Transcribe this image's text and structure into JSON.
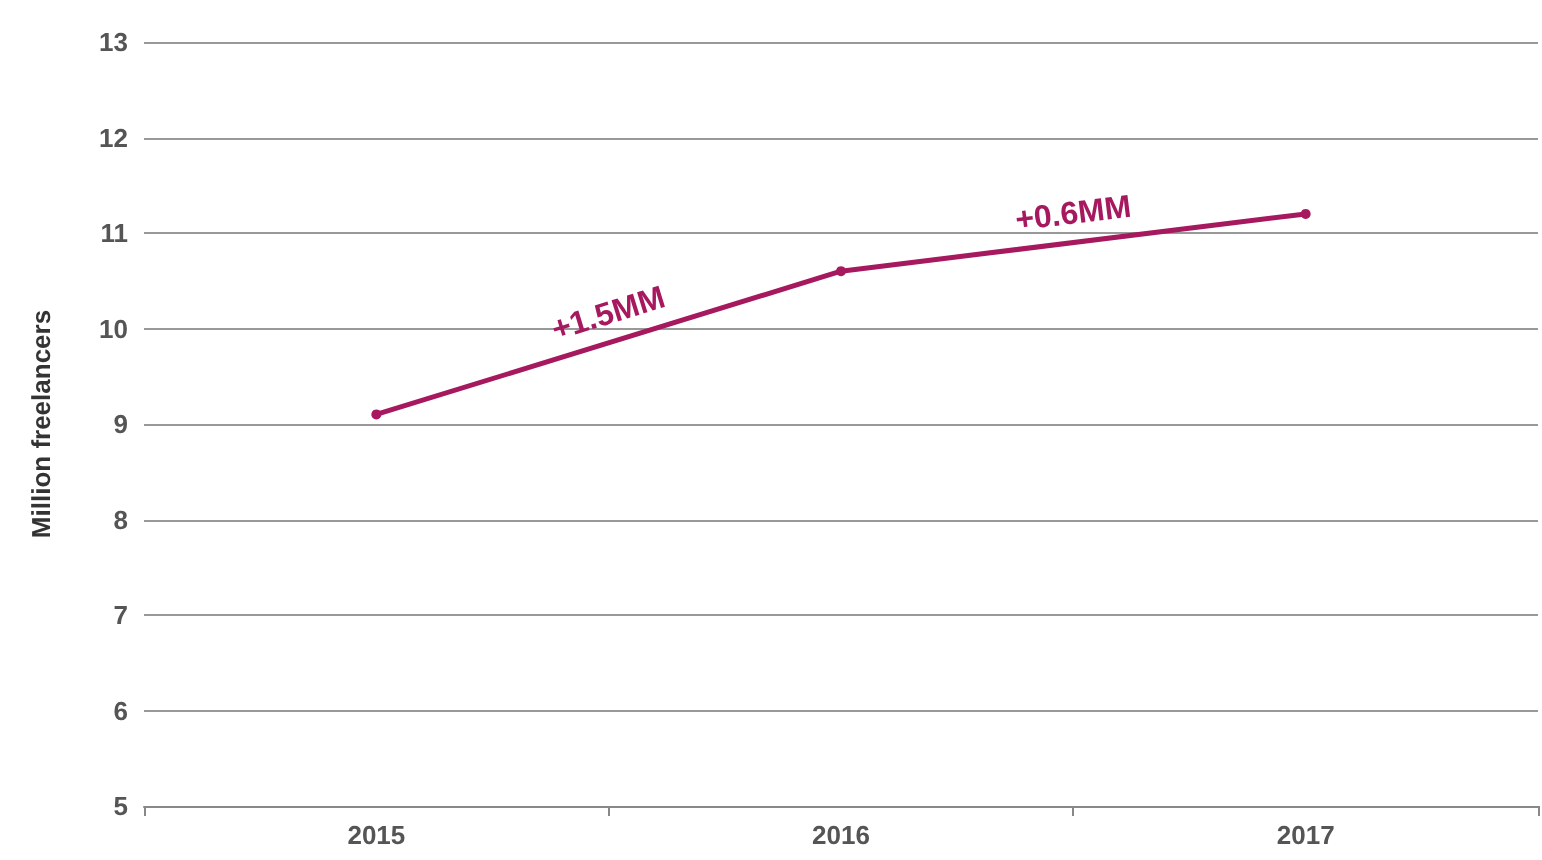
{
  "chart_data": {
    "type": "line",
    "ylabel": "Million freelancers",
    "categories": [
      "2015",
      "2016",
      "2017"
    ],
    "series": [
      {
        "color": "#a6195e",
        "values": [
          9.1,
          10.6,
          11.2
        ]
      }
    ],
    "ylim": [
      5,
      13
    ],
    "yticks": [
      5,
      6,
      7,
      8,
      9,
      10,
      11,
      12,
      13
    ],
    "grid": "y",
    "marker": "circle",
    "line_style": "solid",
    "annotations": [
      "+1.5MM",
      "+0.6MM"
    ]
  }
}
